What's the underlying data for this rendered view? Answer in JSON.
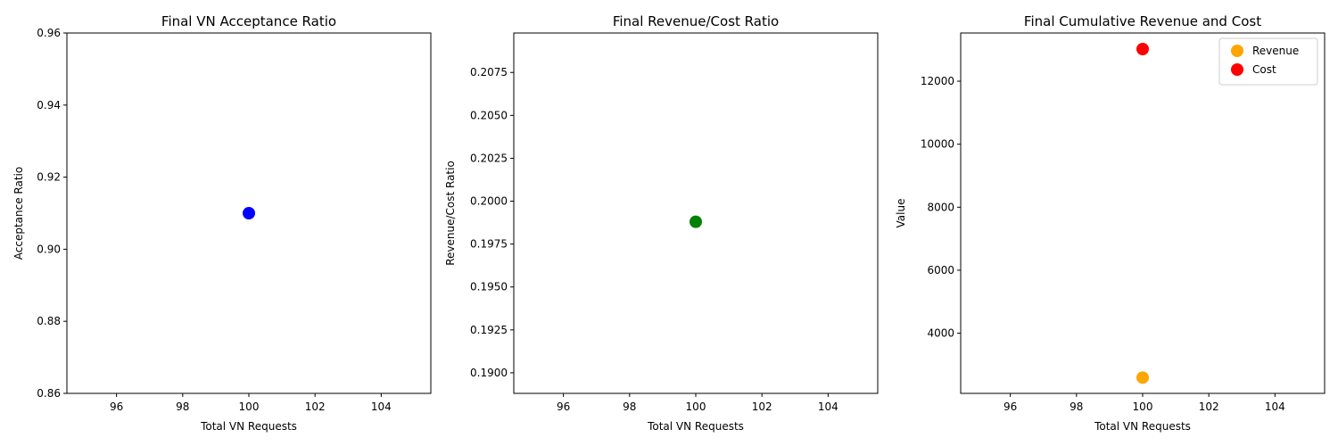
{
  "chart_data": [
    {
      "type": "scatter",
      "title": "Final VN Acceptance Ratio",
      "xlabel": "Total VN Requests",
      "ylabel": "Acceptance Ratio",
      "xlim": [
        94.5,
        105.5
      ],
      "ylim": [
        0.86,
        0.96
      ],
      "xticks": [
        96,
        98,
        100,
        102,
        104
      ],
      "xtick_labels": [
        "96",
        "98",
        "100",
        "102",
        "104"
      ],
      "yticks": [
        0.86,
        0.88,
        0.9,
        0.92,
        0.94,
        0.96
      ],
      "ytick_labels": [
        "0.86",
        "0.88",
        "0.90",
        "0.92",
        "0.94",
        "0.96"
      ],
      "grid": false,
      "series": [
        {
          "color": "#0000ff",
          "points": [
            {
              "x": 100,
              "y": 0.91
            }
          ]
        }
      ]
    },
    {
      "type": "scatter",
      "title": "Final Revenue/Cost Ratio",
      "xlabel": "Total VN Requests",
      "ylabel": "Revenue/Cost Ratio",
      "xlim": [
        94.5,
        105.5
      ],
      "ylim": [
        0.1888,
        0.2098
      ],
      "xticks": [
        96,
        98,
        100,
        102,
        104
      ],
      "xtick_labels": [
        "96",
        "98",
        "100",
        "102",
        "104"
      ],
      "yticks": [
        0.19,
        0.1925,
        0.195,
        0.1975,
        0.2,
        0.2025,
        0.205,
        0.2075
      ],
      "ytick_labels": [
        "0.1900",
        "0.1925",
        "0.1950",
        "0.1975",
        "0.2000",
        "0.2025",
        "0.2050",
        "0.2075"
      ],
      "grid": false,
      "series": [
        {
          "color": "#008000",
          "points": [
            {
              "x": 100,
              "y": 0.1988
            }
          ]
        }
      ]
    },
    {
      "type": "scatter",
      "title": "Final Cumulative Revenue and Cost",
      "xlabel": "Total VN Requests",
      "ylabel": "Value",
      "xlim": [
        94.5,
        105.5
      ],
      "ylim": [
        2090,
        13530
      ],
      "xticks": [
        96,
        98,
        100,
        102,
        104
      ],
      "xtick_labels": [
        "96",
        "98",
        "100",
        "102",
        "104"
      ],
      "yticks": [
        4000,
        6000,
        8000,
        10000,
        12000
      ],
      "ytick_labels": [
        "4000",
        "6000",
        "8000",
        "10000",
        "12000"
      ],
      "grid": false,
      "legend": "top-right",
      "series": [
        {
          "name": "Revenue",
          "color": "#ffa500",
          "points": [
            {
              "x": 100,
              "y": 2590
            }
          ]
        },
        {
          "name": "Cost",
          "color": "#ff0000",
          "points": [
            {
              "x": 100,
              "y": 13020
            }
          ]
        }
      ]
    }
  ]
}
